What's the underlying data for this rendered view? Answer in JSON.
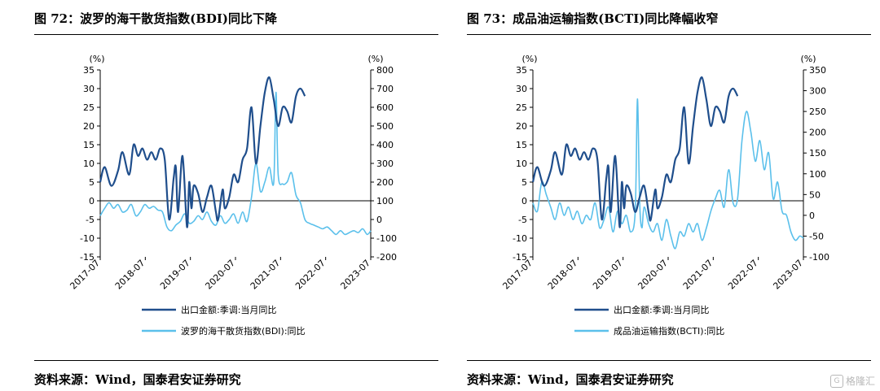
{
  "panels": [
    {
      "title": "图 72：波罗的海干散货指数(BDI)同比下降",
      "source": "资料来源：Wind，国泰君安证券研究",
      "chart_data": {
        "type": "line",
        "left_axis": {
          "unit": "(%)",
          "ticks": [
            35,
            30,
            25,
            20,
            15,
            10,
            5,
            0,
            -5,
            -10,
            -15
          ],
          "ylim": [
            -15,
            35
          ]
        },
        "right_axis": {
          "unit": "(%)",
          "ticks": [
            800,
            700,
            600,
            500,
            400,
            300,
            200,
            100,
            0,
            -100,
            -200
          ],
          "ylim": [
            -200,
            800
          ]
        },
        "x_ticks": [
          "2017-07",
          "2018-07",
          "2019-07",
          "2020-07",
          "2021-07",
          "2022-07",
          "2023-07"
        ],
        "x_range": [
          2017.5,
          2023.58
        ],
        "series": [
          {
            "name": "出口金额:季调:当月同比",
            "axis": "left",
            "color": "#1f4e8c",
            "x": [
              2017.5,
              2017.6,
              2017.75,
              2017.9,
              2018.0,
              2018.15,
              2018.25,
              2018.35,
              2018.45,
              2018.55,
              2018.65,
              2018.75,
              2018.85,
              2018.95,
              2019.05,
              2019.15,
              2019.2,
              2019.25,
              2019.35,
              2019.45,
              2019.5,
              2019.55,
              2019.6,
              2019.7,
              2019.8,
              2019.9,
              2020.0,
              2020.1,
              2020.15,
              2020.25,
              2020.3,
              2020.4,
              2020.5,
              2020.6,
              2020.7,
              2020.8,
              2020.9,
              2021.0,
              2021.1,
              2021.2,
              2021.3,
              2021.4,
              2021.5,
              2021.6,
              2021.7,
              2021.8,
              2021.9,
              2022.0,
              2022.1
            ],
            "y": [
              5,
              9,
              4,
              8,
              13,
              7,
              15,
              12,
              14,
              11,
              13,
              11,
              14,
              11,
              -5,
              6,
              9,
              -3,
              12,
              -7,
              5,
              -2,
              4,
              2,
              -3,
              1,
              4,
              -3,
              -5,
              3,
              -2,
              1,
              7,
              5,
              11,
              14,
              25,
              10,
              20,
              29,
              33,
              27,
              20,
              25,
              24,
              21,
              28,
              30,
              28
            ]
          },
          {
            "name": "波罗的海干散货指数(BDI):同比",
            "axis": "right",
            "color": "#5bc0eb",
            "x": [
              2017.5,
              2017.6,
              2017.7,
              2017.8,
              2017.9,
              2018.0,
              2018.1,
              2018.2,
              2018.3,
              2018.4,
              2018.5,
              2018.6,
              2018.7,
              2018.8,
              2018.9,
              2019.0,
              2019.1,
              2019.2,
              2019.3,
              2019.4,
              2019.5,
              2019.6,
              2019.7,
              2019.8,
              2019.9,
              2020.0,
              2020.1,
              2020.2,
              2020.3,
              2020.4,
              2020.5,
              2020.6,
              2020.7,
              2020.8,
              2020.9,
              2021.0,
              2021.1,
              2021.2,
              2021.3,
              2021.4,
              2021.45,
              2021.5,
              2021.6,
              2021.7,
              2021.8,
              2021.9,
              2022.0,
              2022.1,
              2022.2,
              2022.3,
              2022.4,
              2022.5,
              2022.6,
              2022.7,
              2022.8,
              2022.9,
              2023.0,
              2023.1,
              2023.2,
              2023.3,
              2023.4,
              2023.5,
              2023.58
            ],
            "y": [
              20,
              60,
              90,
              60,
              80,
              40,
              50,
              80,
              20,
              40,
              80,
              60,
              70,
              50,
              40,
              -40,
              -60,
              -30,
              -10,
              30,
              -20,
              -10,
              20,
              0,
              40,
              -10,
              -30,
              20,
              -20,
              0,
              30,
              -20,
              40,
              -10,
              120,
              300,
              150,
              200,
              280,
              200,
              680,
              240,
              190,
              200,
              250,
              130,
              90,
              0,
              -20,
              -30,
              -40,
              -50,
              -40,
              -60,
              -80,
              -60,
              -80,
              -70,
              -60,
              -70,
              -50,
              -80,
              -60
            ]
          }
        ]
      }
    },
    {
      "title": "图 73：成品油运输指数(BCTI)同比降幅收窄",
      "source": "资料来源：Wind，国泰君安证券研究",
      "chart_data": {
        "type": "line",
        "left_axis": {
          "unit": "(%)",
          "ticks": [
            35,
            30,
            25,
            20,
            15,
            10,
            5,
            0,
            -5,
            -10,
            -15
          ],
          "ylim": [
            -15,
            35
          ]
        },
        "right_axis": {
          "unit": "(%)",
          "ticks": [
            350,
            300,
            250,
            200,
            150,
            100,
            50,
            0,
            -50,
            -100
          ],
          "ylim": [
            -100,
            350
          ]
        },
        "x_ticks": [
          "2017-07",
          "2018-07",
          "2019-07",
          "2020-07",
          "2021-07",
          "2022-07",
          "2023-07"
        ],
        "x_range": [
          2017.5,
          2023.58
        ],
        "series": [
          {
            "name": "出口金额:季调:当月同比",
            "axis": "left",
            "color": "#1f4e8c",
            "x": [
              2017.5,
              2017.6,
              2017.75,
              2017.9,
              2018.0,
              2018.15,
              2018.25,
              2018.35,
              2018.45,
              2018.55,
              2018.65,
              2018.75,
              2018.85,
              2018.95,
              2019.05,
              2019.15,
              2019.2,
              2019.25,
              2019.35,
              2019.45,
              2019.5,
              2019.55,
              2019.6,
              2019.7,
              2019.8,
              2019.9,
              2020.0,
              2020.1,
              2020.15,
              2020.25,
              2020.3,
              2020.4,
              2020.5,
              2020.6,
              2020.7,
              2020.8,
              2020.9,
              2021.0,
              2021.1,
              2021.2,
              2021.3,
              2021.4,
              2021.5,
              2021.6,
              2021.7,
              2021.8,
              2021.9,
              2022.0,
              2022.1
            ],
            "y": [
              5,
              9,
              4,
              8,
              13,
              7,
              15,
              12,
              14,
              11,
              13,
              11,
              14,
              11,
              -5,
              6,
              9,
              -3,
              12,
              -7,
              5,
              -2,
              4,
              2,
              -3,
              1,
              4,
              -3,
              -5,
              3,
              -2,
              1,
              7,
              5,
              11,
              14,
              25,
              10,
              20,
              29,
              33,
              27,
              20,
              25,
              24,
              21,
              28,
              30,
              28
            ]
          },
          {
            "name": "成品油运输指数(BCTI):同比",
            "axis": "right",
            "color": "#5bc0eb",
            "x": [
              2017.5,
              2017.6,
              2017.7,
              2017.8,
              2017.9,
              2018.0,
              2018.1,
              2018.2,
              2018.3,
              2018.4,
              2018.5,
              2018.6,
              2018.7,
              2018.8,
              2018.9,
              2019.0,
              2019.1,
              2019.2,
              2019.3,
              2019.4,
              2019.5,
              2019.6,
              2019.7,
              2019.8,
              2019.85,
              2019.9,
              2019.95,
              2020.0,
              2020.1,
              2020.2,
              2020.3,
              2020.4,
              2020.5,
              2020.6,
              2020.7,
              2020.8,
              2020.9,
              2021.0,
              2021.1,
              2021.2,
              2021.3,
              2021.4,
              2021.5,
              2021.6,
              2021.7,
              2021.8,
              2021.9,
              2022.0,
              2022.1,
              2022.2,
              2022.3,
              2022.4,
              2022.5,
              2022.6,
              2022.7,
              2022.8,
              2022.9,
              2023.0,
              2023.1,
              2023.2,
              2023.3,
              2023.4,
              2023.5,
              2023.58
            ],
            "y": [
              30,
              10,
              80,
              50,
              20,
              -10,
              30,
              0,
              20,
              -10,
              10,
              -20,
              0,
              -10,
              30,
              -30,
              -10,
              20,
              -40,
              10,
              -20,
              0,
              -40,
              10,
              280,
              30,
              -30,
              20,
              -20,
              -40,
              -20,
              -60,
              -10,
              -50,
              -80,
              -40,
              -50,
              -20,
              -40,
              -20,
              -60,
              -30,
              10,
              40,
              60,
              20,
              110,
              30,
              40,
              180,
              250,
              200,
              130,
              180,
              110,
              150,
              40,
              80,
              10,
              0,
              -40,
              -60,
              -50,
              -55
            ]
          }
        ]
      }
    }
  ],
  "watermark": {
    "text": "格隆汇",
    "icon": "G"
  }
}
